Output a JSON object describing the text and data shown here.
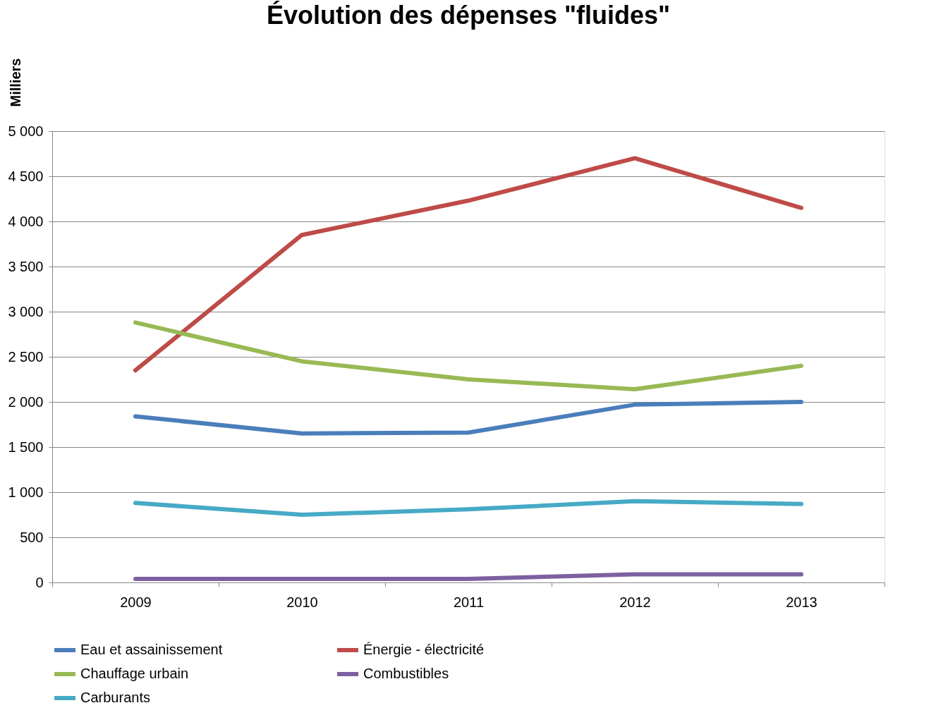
{
  "chart_data": {
    "type": "line",
    "title": "Évolution des dépenses \"fluides\"",
    "ylabel": "Milliers",
    "categories": [
      "2009",
      "2010",
      "2011",
      "2012",
      "2013"
    ],
    "series": [
      {
        "name": "Eau et assainissement",
        "color": "#4a7ebb",
        "values": [
          1840,
          1650,
          1660,
          1970,
          2000
        ]
      },
      {
        "name": "Énergie - électricité",
        "color": "#be4b48",
        "values": [
          2350,
          3850,
          4230,
          4700,
          4150
        ]
      },
      {
        "name": "Chauffage urbain",
        "color": "#98b954",
        "values": [
          2880,
          2450,
          2250,
          2140,
          2400
        ]
      },
      {
        "name": "Combustibles",
        "color": "#7d60a0",
        "values": [
          40,
          40,
          40,
          90,
          90
        ]
      },
      {
        "name": "Carburants",
        "color": "#46aac5",
        "values": [
          880,
          750,
          810,
          900,
          870
        ]
      }
    ],
    "ylim": [
      0,
      5000
    ],
    "yticks": [
      0,
      500,
      {
        "value": 1000,
        "label": "1 000"
      },
      {
        "value": 1500,
        "label": "1 500"
      },
      {
        "value": 2000,
        "label": "2 000"
      },
      {
        "value": 2500,
        "label": "2 500"
      },
      {
        "value": 3000,
        "label": "3 000"
      },
      {
        "value": 3500,
        "label": "3 500"
      },
      {
        "value": 4000,
        "label": "4 000"
      },
      {
        "value": 4500,
        "label": "4 500"
      },
      {
        "value": 5000,
        "label": "5 000"
      }
    ],
    "grid": "y",
    "legend": "bottom",
    "marker": "none",
    "line_style": "solid"
  }
}
